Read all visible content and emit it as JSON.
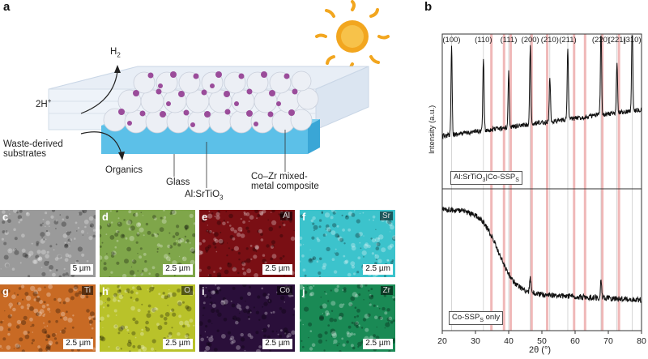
{
  "panel_a": {
    "letter": "a",
    "labels": {
      "h2": "H",
      "h2_sub": "2",
      "twoh": "2H",
      "twoh_sup": "+",
      "waste_line1": "Waste-derived",
      "waste_line2": "substrates",
      "organics": "Organics",
      "glass": "Glass",
      "srtio3": "Al:SrTiO",
      "srtio3_sub": "3",
      "coZr_line1": "Co–Zr mixed-",
      "coZr_line2": "metal composite"
    }
  },
  "micrographs": [
    {
      "letter": "c",
      "element": "",
      "scale": "5 µm",
      "color": "#9a9a9a"
    },
    {
      "letter": "d",
      "element": "",
      "scale": "2.5 µm",
      "color": "#7fa64a"
    },
    {
      "letter": "e",
      "element": "Al",
      "scale": "2.5 µm",
      "color": "#7a0f14"
    },
    {
      "letter": "f",
      "element": "Sr",
      "scale": "2.5 µm",
      "color": "#3cc3cc"
    },
    {
      "letter": "g",
      "element": "Ti",
      "scale": "2.5 µm",
      "color": "#c86a24"
    },
    {
      "letter": "h",
      "element": "O",
      "scale": "2.5 µm",
      "color": "#b9c22a"
    },
    {
      "letter": "i",
      "element": "Co",
      "scale": "2.5 µm",
      "color": "#2a0f3a"
    },
    {
      "letter": "j",
      "element": "Zr",
      "scale": "2.5 µm",
      "color": "#1a8a55"
    }
  ],
  "panel_b": {
    "letter": "b",
    "ylabel": "Intensity (a.u.)",
    "xlabel": "2θ (°)",
    "xticks": [
      "20",
      "30",
      "40",
      "50",
      "60",
      "70",
      "80"
    ],
    "top_label_main": "Al:SrTiO",
    "top_label_sub3": "3",
    "top_label_mid": "|Co-SSP",
    "top_label_subs": "S",
    "bottom_label_main": "Co-SSP",
    "bottom_label_subs": "S",
    "bottom_label_tail": " only",
    "peak_labels": [
      "(100)",
      "(110)",
      "(111)",
      "(200)",
      "(210)",
      "(211)",
      "(220)",
      "(221)",
      "(310)"
    ]
  },
  "chart_data": {
    "type": "line",
    "xlabel": "2θ (°)",
    "ylabel": "Intensity (a.u.)",
    "xlim": [
      20,
      80
    ],
    "peak_positions_2theta": [
      22.8,
      32.4,
      40.0,
      46.5,
      52.4,
      57.8,
      67.8,
      72.6,
      77.2
    ],
    "peak_labels": [
      "(100)",
      "(110)",
      "(111)",
      "(200)",
      "(210)",
      "(211)",
      "(220)",
      "(221)",
      "(310)"
    ],
    "reference_lines_2theta": [
      34.8,
      38.6,
      40.6,
      46.9,
      51.6,
      59.7,
      63.0,
      68.2,
      73.2
    ],
    "series": [
      {
        "name": "Al:SrTiO3|Co-SSPS"
      },
      {
        "name": "Co-SSPS only"
      }
    ]
  }
}
